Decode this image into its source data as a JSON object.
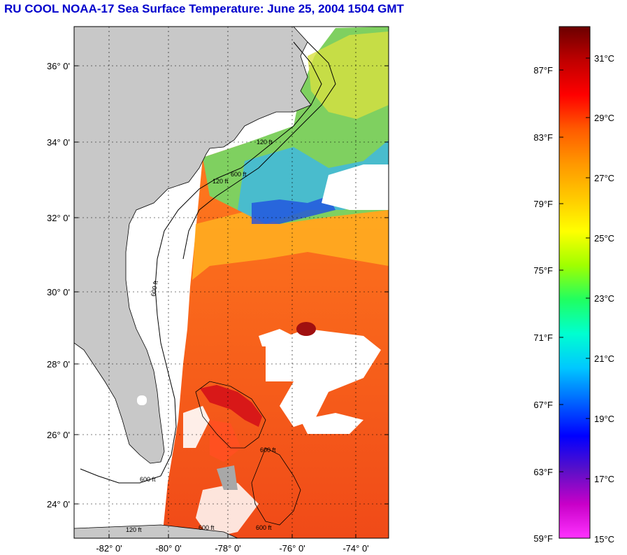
{
  "title": "RU COOL  NOAA-17  Sea Surface Temperature:  June 25, 2004 1504 GMT",
  "map": {
    "lat_labels": [
      "36° 0'",
      "34° 0'",
      "32° 0'",
      "30° 0'",
      "28° 0'",
      "26° 0'",
      "24° 0'"
    ],
    "lon_labels": [
      "-82° 0'",
      "-80° 0'",
      "-78° 0'",
      "-76° 0'",
      "-74° 0'"
    ],
    "contour_labels": [
      "120 ft",
      "600 ft",
      "120 ft",
      "600 ft",
      "600 ft",
      "600 ft",
      "600 ft",
      "600 ft",
      "120 ft"
    ],
    "colors": {
      "land": "#c8c8c8",
      "no_data": "#ffffff",
      "warm": "#ff6a1a",
      "hot": "#e83a14",
      "cool": "#3aa0ff",
      "frame": "#000000"
    }
  },
  "colorbar": {
    "fahrenheit_labels": [
      "87°F",
      "83°F",
      "79°F",
      "75°F",
      "71°F",
      "67°F",
      "63°F",
      "59°F"
    ],
    "celsius_labels": [
      "31°C",
      "29°C",
      "27°C",
      "25°C",
      "23°C",
      "21°C",
      "19°C",
      "17°C",
      "15°C"
    ],
    "scale_colors": [
      "#6b0000",
      "#c00000",
      "#ff0000",
      "#ff5a00",
      "#ff9600",
      "#ffc800",
      "#ffff00",
      "#a0ff00",
      "#20ff60",
      "#00ffd0",
      "#00c8ff",
      "#0064ff",
      "#0000ff",
      "#5a10c8",
      "#c800c8",
      "#ff32ff"
    ]
  }
}
